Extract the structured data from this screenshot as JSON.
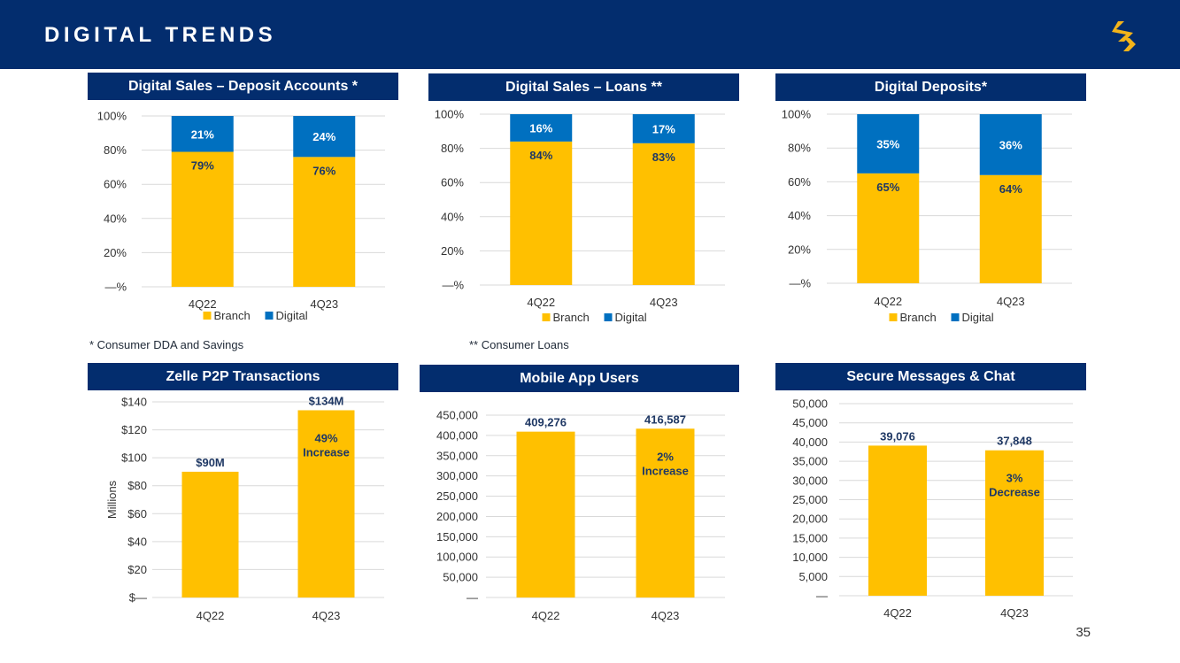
{
  "header": {
    "title": "DIGITAL TRENDS",
    "logo": "chevron-s-logo-icon"
  },
  "page_number": "35",
  "notes": {
    "deposit": "* Consumer DDA and Savings",
    "loans": "** Consumer Loans"
  },
  "colors": {
    "navy": "#032d6e",
    "branch": "#ffc000",
    "digital": "#0070c0",
    "grid": "#d9d9d9",
    "axis_text": "#333333",
    "label_dark": "#1f3864",
    "label_light": "#ffffff"
  },
  "chart_data": [
    {
      "id": "deposit",
      "type": "bar",
      "stacked": true,
      "title": "Digital Sales – Deposit Accounts *",
      "categories": [
        "4Q22",
        "4Q23"
      ],
      "series": [
        {
          "name": "Branch",
          "values": [
            79,
            76
          ],
          "labels": [
            "79%",
            "76%"
          ]
        },
        {
          "name": "Digital",
          "values": [
            21,
            24
          ],
          "labels": [
            "21%",
            "24%"
          ]
        }
      ],
      "ylim": [
        0,
        100
      ],
      "yticks": [
        0,
        20,
        40,
        60,
        80,
        100
      ],
      "ytick_labels": [
        "—%",
        "20%",
        "40%",
        "60%",
        "80%",
        "100%"
      ],
      "legend": "bottom",
      "legend_entries": [
        "Branch",
        "Digital"
      ],
      "grid": true
    },
    {
      "id": "loans",
      "type": "bar",
      "stacked": true,
      "title": "Digital Sales – Loans **",
      "categories": [
        "4Q22",
        "4Q23"
      ],
      "series": [
        {
          "name": "Branch",
          "values": [
            84,
            83
          ],
          "labels": [
            "84%",
            "83%"
          ]
        },
        {
          "name": "Digital",
          "values": [
            16,
            17
          ],
          "labels": [
            "16%",
            "17%"
          ]
        }
      ],
      "ylim": [
        0,
        100
      ],
      "yticks": [
        0,
        20,
        40,
        60,
        80,
        100
      ],
      "ytick_labels": [
        "—%",
        "20%",
        "40%",
        "60%",
        "80%",
        "100%"
      ],
      "legend": "bottom",
      "legend_entries": [
        "Branch",
        "Digital"
      ],
      "grid": true
    },
    {
      "id": "deposits",
      "type": "bar",
      "stacked": true,
      "title": "Digital Deposits*",
      "categories": [
        "4Q22",
        "4Q23"
      ],
      "series": [
        {
          "name": "Branch",
          "values": [
            65,
            64
          ],
          "labels": [
            "65%",
            "64%"
          ]
        },
        {
          "name": "Digital",
          "values": [
            35,
            36
          ],
          "labels": [
            "35%",
            "36%"
          ]
        }
      ],
      "ylim": [
        0,
        100
      ],
      "yticks": [
        0,
        20,
        40,
        60,
        80,
        100
      ],
      "ytick_labels": [
        "—%",
        "20%",
        "40%",
        "60%",
        "80%",
        "100%"
      ],
      "legend": "bottom",
      "legend_entries": [
        "Branch",
        "Digital"
      ],
      "grid": true
    },
    {
      "id": "zelle",
      "type": "bar",
      "title": "Zelle P2P Transactions",
      "ylabel": "Millions",
      "categories": [
        "4Q22",
        "4Q23"
      ],
      "values": [
        90,
        134
      ],
      "value_labels": [
        "$90M",
        "$134M"
      ],
      "annotation": {
        "bar": 1,
        "lines": [
          "49%",
          "Increase"
        ]
      },
      "ylim": [
        0,
        140
      ],
      "yticks": [
        0,
        20,
        40,
        60,
        80,
        100,
        120,
        140
      ],
      "ytick_labels": [
        "$—",
        "$20",
        "$40",
        "$60",
        "$80",
        "$100",
        "$120",
        "$140"
      ],
      "grid": true
    },
    {
      "id": "mobile",
      "type": "bar",
      "title": "Mobile App Users",
      "categories": [
        "4Q22",
        "4Q23"
      ],
      "values": [
        409276,
        416587
      ],
      "value_labels": [
        "409,276",
        "416,587"
      ],
      "annotation": {
        "bar": 1,
        "lines": [
          "2%",
          "Increase"
        ]
      },
      "ylim": [
        0,
        450000
      ],
      "yticks": [
        0,
        50000,
        100000,
        150000,
        200000,
        250000,
        300000,
        350000,
        400000,
        450000
      ],
      "ytick_labels": [
        "—",
        "50,000",
        "100,000",
        "150,000",
        "200,000",
        "250,000",
        "300,000",
        "350,000",
        "400,000",
        "450,000"
      ],
      "grid": true
    },
    {
      "id": "secure",
      "type": "bar",
      "title": "Secure Messages & Chat",
      "categories": [
        "4Q22",
        "4Q23"
      ],
      "values": [
        39076,
        37848
      ],
      "value_labels": [
        "39,076",
        "37,848"
      ],
      "annotation": {
        "bar": 1,
        "lines": [
          "3%",
          "Decrease"
        ]
      },
      "ylim": [
        0,
        50000
      ],
      "yticks": [
        0,
        5000,
        10000,
        15000,
        20000,
        25000,
        30000,
        35000,
        40000,
        45000,
        50000
      ],
      "ytick_labels": [
        "—",
        "5,000",
        "10,000",
        "15,000",
        "20,000",
        "25,000",
        "30,000",
        "35,000",
        "40,000",
        "45,000",
        "50,000"
      ],
      "grid": true
    }
  ]
}
